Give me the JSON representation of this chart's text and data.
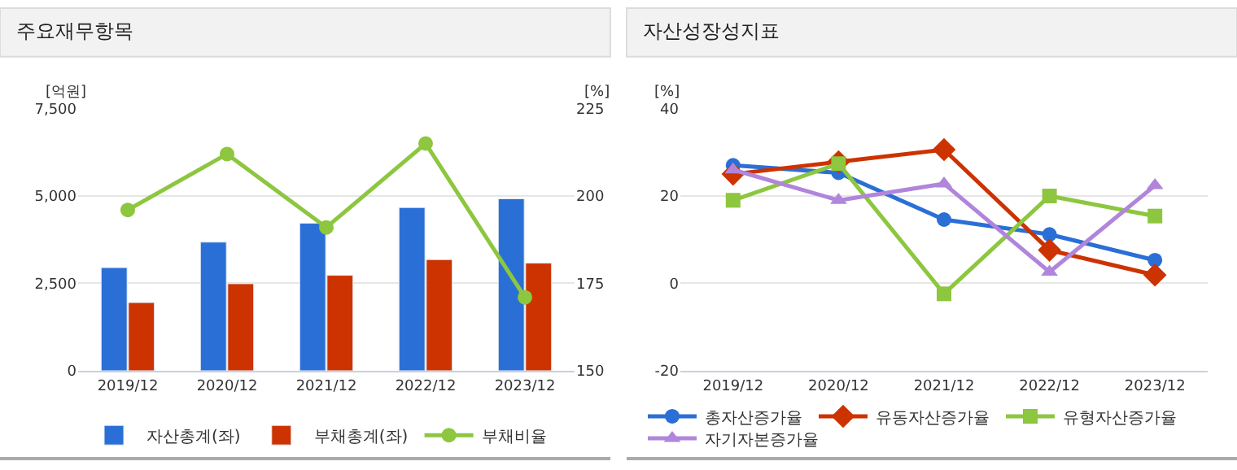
{
  "chart_data": [
    {
      "type": "bar",
      "title": "주요재무항목",
      "ylabel": "[억원]",
      "y2label": "[%]",
      "categories": [
        "2019/12",
        "2020/12",
        "2021/12",
        "2022/12",
        "2023/12"
      ],
      "series": [
        {
          "name": "자산총계(좌)",
          "color": "#2a6fd6",
          "values": [
            2950,
            3680,
            4220,
            4670,
            4920
          ]
        },
        {
          "name": "부채총계(좌)",
          "color": "#cc3300",
          "values": [
            1950,
            2490,
            2730,
            3180,
            3080
          ]
        },
        {
          "name": "부채비율",
          "type": "line",
          "axis": "y2",
          "marker": "circle",
          "color": "#8dc63f",
          "values": [
            196,
            212,
            191,
            215,
            171
          ]
        }
      ],
      "ylim": [
        0,
        7500
      ],
      "yticks": [
        0,
        {
          "value": 2500,
          "label": "2,500"
        },
        {
          "value": 5000,
          "label": "5,000"
        },
        {
          "value": 7500,
          "label": "7,500"
        }
      ],
      "y2lim": [
        150,
        225
      ],
      "y2ticks": [
        150,
        175,
        200,
        225
      ],
      "grid": "y",
      "legend": "bottom"
    },
    {
      "type": "line",
      "title": "자산성장성지표",
      "ylabel": "[%]",
      "categories": [
        "2019/12",
        "2020/12",
        "2021/12",
        "2022/12",
        "2023/12"
      ],
      "series": [
        {
          "name": "총자산증가율",
          "color": "#2a6fd6",
          "marker": "circle",
          "values": [
            27.0,
            25.3,
            14.6,
            11.2,
            5.3
          ]
        },
        {
          "name": "유동자산증가율",
          "color": "#cc3300",
          "marker": "diamond",
          "values": [
            25.0,
            27.8,
            30.6,
            7.6,
            1.9
          ]
        },
        {
          "name": "유형자산증가율",
          "color": "#8dc63f",
          "marker": "square",
          "values": [
            19.0,
            27.4,
            -2.4,
            20.0,
            15.4
          ]
        },
        {
          "name": "자기자본증가율",
          "color": "#b085db",
          "marker": "triangle",
          "values": [
            26.0,
            19.0,
            22.8,
            2.6,
            22.4
          ]
        }
      ],
      "ylim": [
        -20,
        40
      ],
      "yticks": [
        -20,
        0,
        20,
        40
      ],
      "grid": "y",
      "legend": "bottom"
    }
  ]
}
